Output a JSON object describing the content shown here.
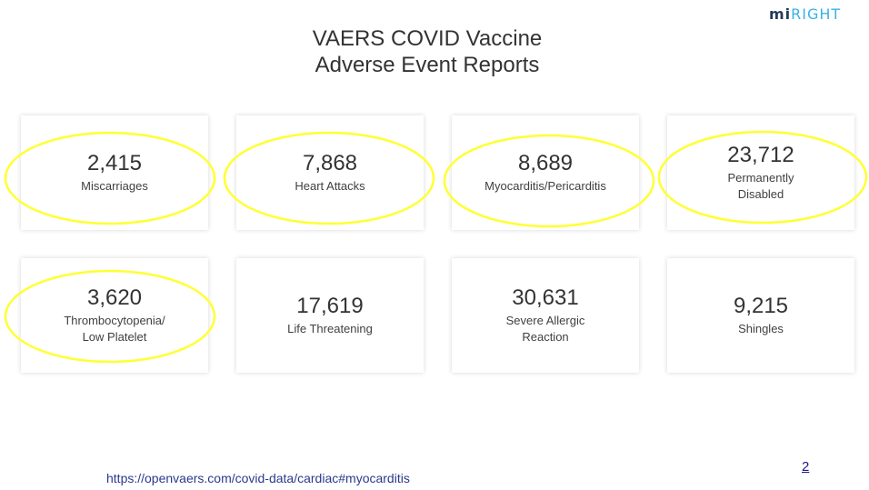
{
  "logo": {
    "dark": "mi",
    "light": "RIGHT"
  },
  "title": {
    "line1": "VAERS COVID Vaccine",
    "line2": "Adverse Event Reports"
  },
  "stats": [
    {
      "value": "2,415",
      "label": "Miscarriages",
      "highlighted": true
    },
    {
      "value": "7,868",
      "label": "Heart Attacks",
      "highlighted": true
    },
    {
      "value": "8,689",
      "label": "Myocarditis/Pericarditis",
      "highlighted": true
    },
    {
      "value": "23,712",
      "label": "Permanently\nDisabled",
      "highlighted": true
    },
    {
      "value": "3,620",
      "label": "Thrombocytopenia/\nLow Platelet",
      "highlighted": true
    },
    {
      "value": "17,619",
      "label": "Life Threatening",
      "highlighted": false
    },
    {
      "value": "30,631",
      "label": "Severe Allergic\nReaction",
      "highlighted": false
    },
    {
      "value": "9,215",
      "label": "Shingles",
      "highlighted": false
    }
  ],
  "colors": {
    "highlight": "#ffff33",
    "link": "#2a3a8c"
  },
  "source_link": "https://openvaers.com/covid-data/cardiac#myocarditis",
  "page_number": "2"
}
